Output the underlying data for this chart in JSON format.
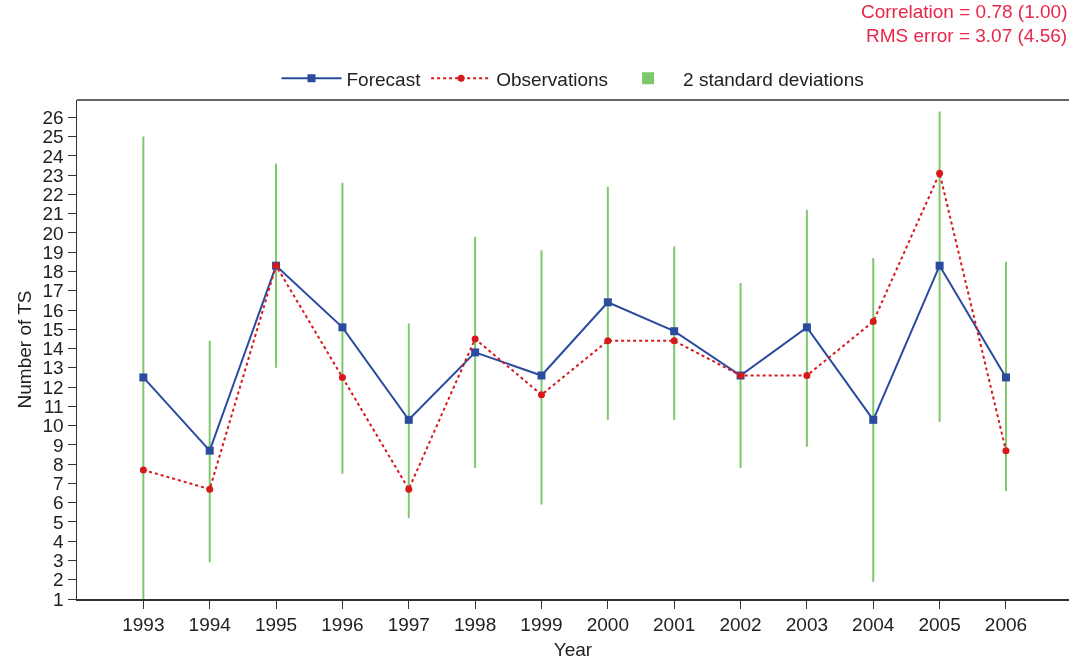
{
  "chart_data": {
    "type": "line",
    "xlabel": "Year",
    "ylabel": "Number of TS",
    "categories": [
      "1993",
      "1994",
      "1995",
      "1996",
      "1997",
      "1998",
      "1999",
      "2000",
      "2001",
      "2002",
      "2003",
      "2004",
      "2005",
      "2006"
    ],
    "series": [
      {
        "name": "Forecast",
        "color": "#2b4ba0",
        "marker": "square",
        "line_style": "solid",
        "values": [
          12.5,
          8.7,
          18.3,
          15.1,
          10.3,
          13.8,
          12.6,
          16.4,
          14.9,
          12.6,
          15.1,
          10.3,
          18.3,
          12.5
        ]
      },
      {
        "name": "Observations",
        "color": "#d7191c",
        "marker": "circle",
        "line_style": "dotted",
        "values": [
          7.7,
          6.7,
          18.3,
          12.5,
          6.7,
          14.5,
          11.6,
          14.4,
          14.4,
          12.6,
          12.6,
          15.4,
          23.1,
          8.7
        ]
      },
      {
        "name": "2 standard deviations",
        "color": "#7cc86a",
        "type": "bar",
        "base": [
          1,
          2.9,
          13.0,
          7.5,
          5.2,
          7.8,
          5.9,
          10.3,
          10.3,
          7.8,
          8.9,
          1.9,
          10.2,
          6.6
        ],
        "values": [
          24.0,
          11.5,
          10.6,
          15.1,
          10.1,
          12.0,
          13.2,
          12.1,
          9.0,
          9.6,
          12.3,
          16.8,
          16.1,
          11.9
        ]
      }
    ],
    "ylim": [
      1,
      26.9
    ],
    "yticks": [
      1,
      2,
      3,
      4,
      5,
      6,
      7,
      8,
      9,
      10,
      11,
      12,
      13,
      14,
      15,
      16,
      17,
      18,
      19,
      20,
      21,
      22,
      23,
      24,
      25,
      26
    ],
    "grid": false,
    "legend": "top",
    "annotations": [
      "Correlation = 0.78 (1.00)",
      "RMS error = 3.07 (4.56)"
    ]
  }
}
